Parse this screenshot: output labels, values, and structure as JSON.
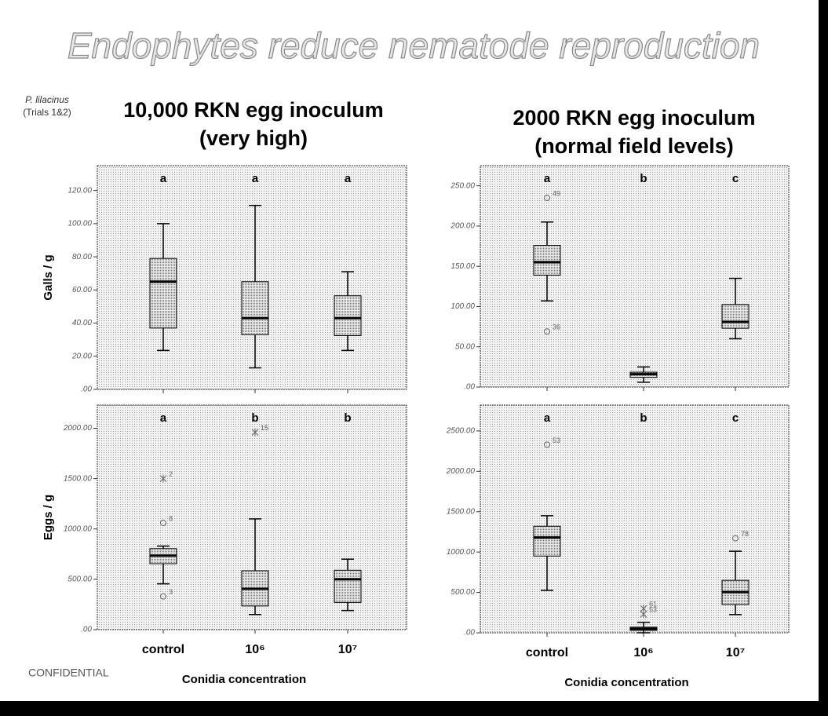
{
  "slide": {
    "title": "Endophytes reduce nematode reproduction",
    "note_species": "P. lilacinus",
    "note_trials": "(Trials 1&2)",
    "column_titles": [
      [
        "10,000 RKN egg inoculum",
        "(very high)"
      ],
      [
        "2000 RKN egg inoculum",
        "(normal field levels)"
      ]
    ],
    "footer": "CONFIDENTIAL"
  },
  "chart_data": [
    {
      "type": "box",
      "ylabel": "Galls / g",
      "letters": [
        "a",
        "a",
        "a"
      ],
      "ylim": [
        0,
        135
      ],
      "yticks": [
        {
          "value": 0,
          "label": ".00"
        },
        {
          "value": 20,
          "label": "20.00"
        },
        {
          "value": 40,
          "label": "40.00"
        },
        {
          "value": 60,
          "label": "60.00"
        },
        {
          "value": 80,
          "label": "80.00"
        },
        {
          "value": 100,
          "label": "100.00"
        },
        {
          "value": 120,
          "label": "120.00"
        }
      ],
      "boxes": [
        {
          "min": 23.5,
          "q1": 37,
          "median": 65,
          "q3": 79,
          "max": 100,
          "outliers": []
        },
        {
          "min": 13,
          "q1": 33,
          "median": 43,
          "q3": 65,
          "max": 111,
          "outliers": []
        },
        {
          "min": 23.5,
          "q1": 32.5,
          "median": 43,
          "q3": 56.5,
          "max": 71,
          "outliers": []
        }
      ]
    },
    {
      "type": "box",
      "letters": [
        "a",
        "b",
        "c"
      ],
      "ylim": [
        0,
        275
      ],
      "yticks": [
        {
          "value": 0,
          "label": ".00"
        },
        {
          "value": 50,
          "label": "50.00"
        },
        {
          "value": 100,
          "label": "100.00"
        },
        {
          "value": 150,
          "label": "150.00"
        },
        {
          "value": 200,
          "label": "200.00"
        },
        {
          "value": 250,
          "label": "250.00"
        }
      ],
      "boxes": [
        {
          "min": 107,
          "q1": 139,
          "median": 155,
          "q3": 176,
          "max": 205,
          "outliers": [
            {
              "value": 235,
              "label": "49",
              "shape": "circle"
            },
            {
              "value": 69,
              "label": "36",
              "shape": "circle"
            }
          ]
        },
        {
          "min": 6,
          "q1": 12,
          "median": 16,
          "q3": 18.5,
          "max": 25,
          "outliers": []
        },
        {
          "min": 60,
          "q1": 73,
          "median": 81,
          "q3": 102.5,
          "max": 135,
          "outliers": []
        }
      ]
    },
    {
      "type": "box",
      "ylabel": "Eggs / g",
      "xlabel": "Conidia concentration",
      "categories": [
        "control",
        "10⁶",
        "10⁷"
      ],
      "letters": [
        "a",
        "b",
        "b"
      ],
      "ylim": [
        0,
        2230
      ],
      "yticks": [
        {
          "value": 0,
          "label": ".00"
        },
        {
          "value": 500,
          "label": "500.00"
        },
        {
          "value": 1000,
          "label": "1000.00"
        },
        {
          "value": 1500,
          "label": "1500.00"
        },
        {
          "value": 2000,
          "label": "2000.00"
        }
      ],
      "boxes": [
        {
          "min": 455,
          "q1": 655,
          "median": 735,
          "q3": 805,
          "max": 830,
          "outliers": [
            {
              "value": 1500,
              "label": "2",
              "shape": "star"
            },
            {
              "value": 1060,
              "label": "8",
              "shape": "circle"
            },
            {
              "value": 330,
              "label": "3",
              "shape": "circle"
            }
          ]
        },
        {
          "min": 150,
          "q1": 235,
          "median": 405,
          "q3": 585,
          "max": 1100,
          "outliers": [
            {
              "value": 1960,
              "label": "15",
              "shape": "star"
            }
          ]
        },
        {
          "min": 190,
          "q1": 270,
          "median": 500,
          "q3": 590,
          "max": 700,
          "outliers": []
        }
      ]
    },
    {
      "type": "box",
      "xlabel": "Conidia concentration",
      "categories": [
        "control",
        "10⁶",
        "10⁷"
      ],
      "letters": [
        "a",
        "b",
        "c"
      ],
      "ylim": [
        0,
        2820
      ],
      "yticks": [
        {
          "value": 0,
          "label": ".00"
        },
        {
          "value": 500,
          "label": "500.00"
        },
        {
          "value": 1000,
          "label": "1000.00"
        },
        {
          "value": 1500,
          "label": "1500.00"
        },
        {
          "value": 2000,
          "label": "2000.00"
        },
        {
          "value": 2500,
          "label": "2500.00"
        }
      ],
      "boxes": [
        {
          "min": 525,
          "q1": 950,
          "median": 1180,
          "q3": 1320,
          "max": 1450,
          "outliers": [
            {
              "value": 2330,
              "label": "53",
              "shape": "circle"
            }
          ]
        },
        {
          "min": 0,
          "q1": 30,
          "median": 50,
          "q3": 70,
          "max": 130,
          "outliers": [
            {
              "value": 300,
              "label": "61",
              "shape": "star"
            },
            {
              "value": 230,
              "label": "53",
              "shape": "star"
            }
          ]
        },
        {
          "min": 225,
          "q1": 350,
          "median": 505,
          "q3": 650,
          "max": 1010,
          "outliers": [
            {
              "value": 1170,
              "label": "78",
              "shape": "circle"
            }
          ]
        }
      ]
    }
  ]
}
